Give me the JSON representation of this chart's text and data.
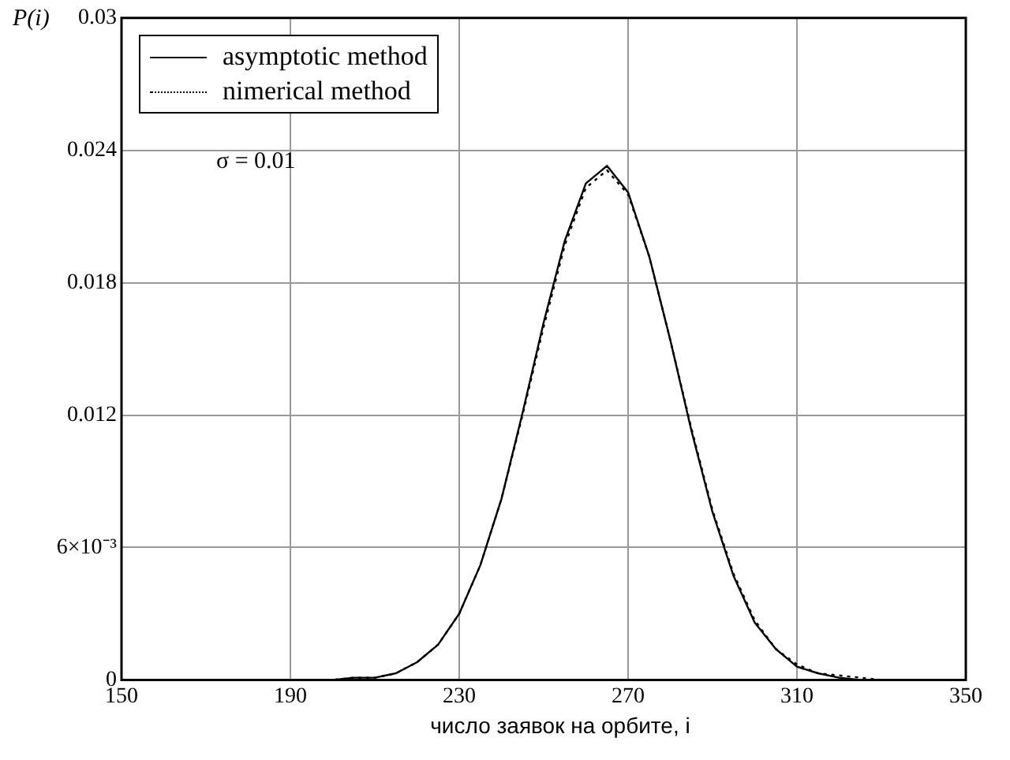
{
  "chart_data": {
    "type": "line",
    "ylabel": "P(i)",
    "xlabel": "число заявок на орбите, i",
    "annotations": [
      "σ = 0.01"
    ],
    "x": [
      150,
      200,
      205,
      210,
      215,
      220,
      225,
      230,
      235,
      240,
      245,
      250,
      255,
      260,
      265,
      270,
      275,
      280,
      285,
      290,
      295,
      300,
      305,
      310,
      315,
      320,
      325,
      330,
      350
    ],
    "series": [
      {
        "name": "asymptotic method",
        "color": "#000000",
        "line_style": "solid",
        "values": [
          0,
          0,
          0.0001,
          0.0001,
          0.0003,
          0.0008,
          0.0016,
          0.003,
          0.0052,
          0.0082,
          0.0121,
          0.0162,
          0.0199,
          0.0225,
          0.0233,
          0.0221,
          0.0192,
          0.0154,
          0.0113,
          0.0076,
          0.0047,
          0.0026,
          0.0014,
          0.0006,
          0.0003,
          0.0001,
          0,
          0,
          0
        ]
      },
      {
        "name": "nimerical method",
        "color": "#000000",
        "line_style": "dotted",
        "values": [
          0,
          0,
          0.0001,
          0.0001,
          0.0003,
          0.0008,
          0.0016,
          0.003,
          0.0052,
          0.0082,
          0.012,
          0.016,
          0.0197,
          0.0223,
          0.0231,
          0.022,
          0.0192,
          0.0154,
          0.0114,
          0.0077,
          0.0048,
          0.0027,
          0.0014,
          0.0007,
          0.0003,
          0.0002,
          0.0001,
          0,
          0
        ]
      }
    ],
    "xlim": [
      150,
      350
    ],
    "xticks": [
      150,
      190,
      230,
      270,
      310,
      350
    ],
    "ylim": [
      0,
      0.03
    ],
    "yticks": [
      0,
      {
        "value": 0.006,
        "label": "6×10⁻³"
      },
      0.012,
      0.018,
      0.024,
      0.03
    ],
    "grid": true,
    "legend": "top left",
    "marker": "none"
  }
}
